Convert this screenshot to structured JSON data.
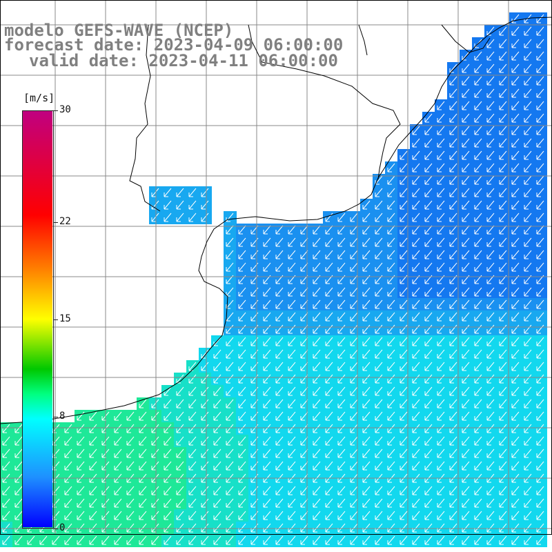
{
  "title": {
    "model": "modelo GEFS-WAVE (NCEP)",
    "forecast": "forecast date: 2023-04-09 06:00:00",
    "valid": "valid date: 2023-04-11 06:00:00"
  },
  "colorbar": {
    "units": "[m/s]",
    "ticks": [
      "30",
      "22",
      "15",
      "8",
      "0"
    ],
    "tick_values": [
      30,
      22,
      15,
      8,
      0
    ],
    "min": 0,
    "max": 30,
    "colors": [
      "#0000ff",
      "#1e90ff",
      "#00ffff",
      "#00ff80",
      "#00c800",
      "#ffff00",
      "#ff8000",
      "#ff0000",
      "#c00080"
    ]
  },
  "map": {
    "field": "wind speed",
    "land_color": "#ffffff",
    "coast_color": "#000000",
    "grid_color": "#888888",
    "arrow_color": "#ffffff",
    "wind_direction": "from north-east"
  }
}
